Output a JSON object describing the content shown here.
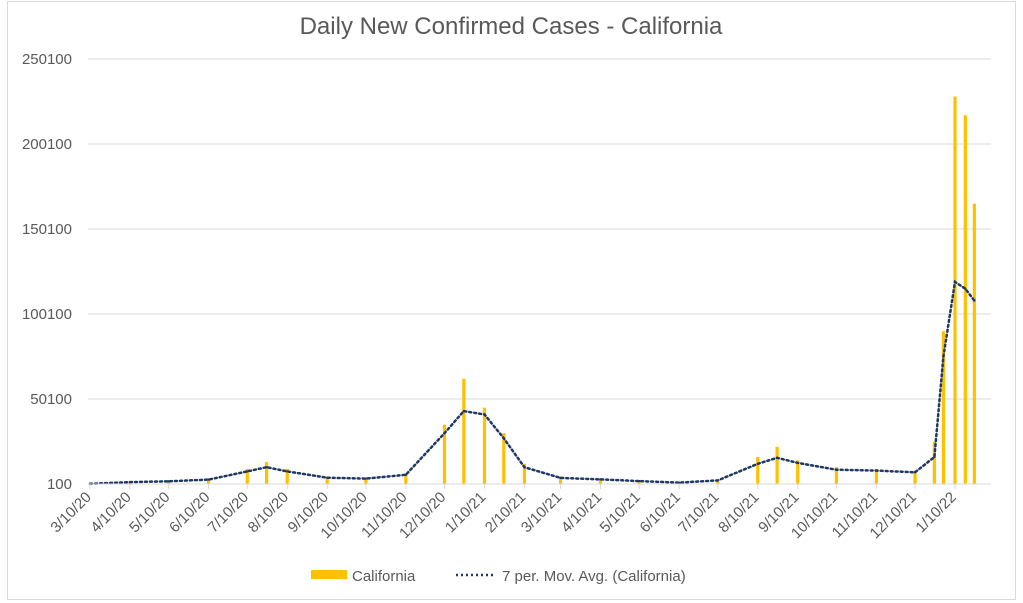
{
  "chart_data": {
    "type": "bar",
    "title": "Daily New Confirmed Cases - California",
    "xlabel": "",
    "ylabel": "",
    "ylim": [
      100,
      250100
    ],
    "y_ticks": [
      100,
      50100,
      100100,
      150100,
      200100,
      250100
    ],
    "x_ticks": [
      "3/10/20",
      "4/10/20",
      "5/10/20",
      "6/10/20",
      "7/10/20",
      "8/10/20",
      "9/10/20",
      "10/10/20",
      "11/10/20",
      "12/10/20",
      "1/10/21",
      "2/10/21",
      "3/10/21",
      "4/10/21",
      "5/10/21",
      "6/10/21",
      "7/10/21",
      "8/10/21",
      "9/10/21",
      "10/10/21",
      "11/10/21",
      "12/10/21",
      "1/10/22"
    ],
    "grid": true,
    "legend_position": "bottom",
    "series": [
      {
        "name": "California",
        "kind": "bar",
        "color": "#FFC000",
        "x": [
          "3/10/20",
          "4/10/20",
          "5/10/20",
          "6/10/20",
          "7/10/20",
          "7/25/20",
          "8/10/20",
          "9/10/20",
          "10/10/20",
          "11/10/20",
          "12/10/20",
          "12/25/20",
          "1/10/21",
          "1/25/21",
          "2/10/21",
          "3/10/21",
          "4/10/21",
          "5/10/21",
          "6/10/21",
          "7/10/21",
          "8/10/21",
          "8/25/21",
          "9/10/21",
          "10/10/21",
          "11/10/21",
          "12/10/21",
          "12/25/21",
          "1/1/22",
          "1/10/22",
          "1/18/22",
          "1/25/22"
        ],
        "values": [
          200,
          1500,
          2000,
          3000,
          9000,
          13000,
          9000,
          4000,
          3500,
          6000,
          35000,
          62000,
          45000,
          30000,
          12000,
          4000,
          3000,
          2000,
          1000,
          2500,
          16000,
          22000,
          14000,
          10000,
          9000,
          8000,
          25000,
          90000,
          228000,
          217000,
          165000
        ]
      },
      {
        "name": "7 per. Mov. Avg. (California)",
        "kind": "line",
        "style": "dotted",
        "color": "#1F3864",
        "x": [
          "3/10/20",
          "4/10/20",
          "5/10/20",
          "6/10/20",
          "7/10/20",
          "7/25/20",
          "8/10/20",
          "9/10/20",
          "10/10/20",
          "11/10/20",
          "12/10/20",
          "12/25/20",
          "1/10/21",
          "1/25/21",
          "2/10/21",
          "3/10/21",
          "4/10/21",
          "5/10/21",
          "6/10/21",
          "7/10/21",
          "8/10/21",
          "8/25/21",
          "9/10/21",
          "10/10/21",
          "11/10/21",
          "12/10/21",
          "12/25/21",
          "1/1/22",
          "1/10/22",
          "1/18/22",
          "1/25/22"
        ],
        "values": [
          200,
          1200,
          1700,
          2700,
          7500,
          10000,
          7500,
          3800,
          3300,
          5500,
          30000,
          43000,
          41000,
          27000,
          10000,
          3700,
          2800,
          1800,
          900,
          2200,
          12000,
          15500,
          12500,
          8500,
          8000,
          7000,
          16000,
          75000,
          119000,
          115000,
          108000
        ]
      }
    ]
  }
}
